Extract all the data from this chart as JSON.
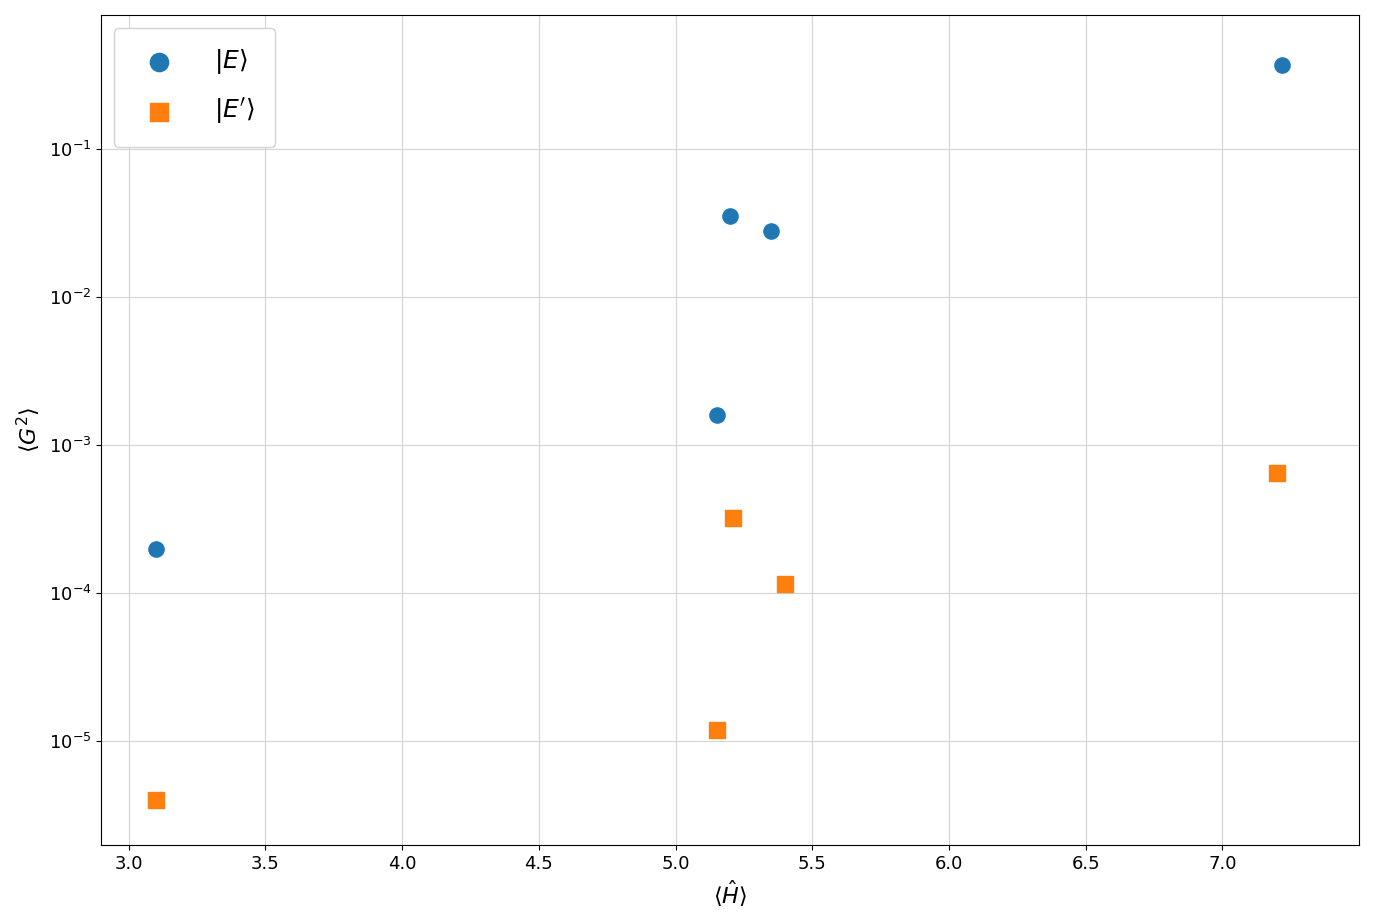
{
  "blue_x": [
    3.1,
    5.2,
    5.35,
    5.15,
    7.22
  ],
  "blue_y": [
    0.0002,
    0.035,
    0.028,
    0.0016,
    0.37
  ],
  "orange_x": [
    3.1,
    5.15,
    5.21,
    5.4,
    7.2
  ],
  "orange_y": [
    4e-06,
    1.2e-05,
    0.00032,
    0.000115,
    0.00065
  ],
  "blue_color": "#1f77b4",
  "orange_color": "#ff7f0e",
  "blue_label": "$| E\\rangle$",
  "orange_label": "$| E'\\rangle$",
  "xlabel": "$\\langle \\hat{H} \\rangle$",
  "ylabel": "$\\langle G^2 \\rangle$",
  "xlim": [
    2.9,
    7.5
  ],
  "ylim": [
    2e-06,
    0.8
  ],
  "title": "",
  "marker_size": 120
}
